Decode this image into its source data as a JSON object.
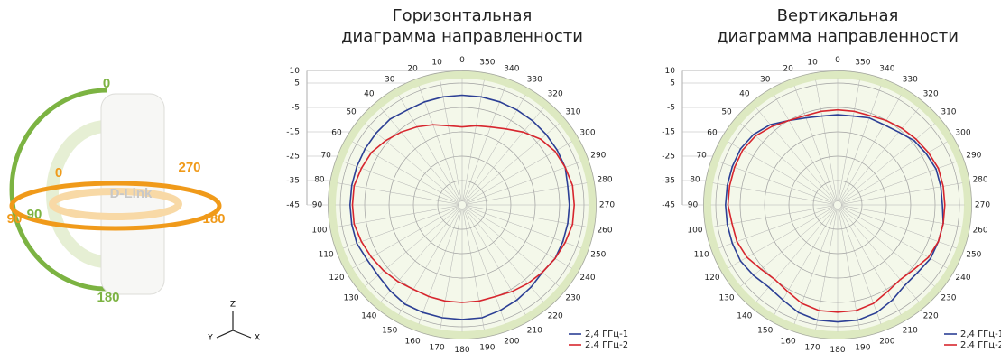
{
  "illustration": {
    "device_label": "D-Link",
    "vertical_labels": [
      "0",
      "90",
      "180"
    ],
    "horizontal_labels": [
      "0",
      "270",
      "90",
      "180"
    ],
    "axes": [
      "Z",
      "Y",
      "X"
    ]
  },
  "chart_data": [
    {
      "type": "polar",
      "title": [
        "Горизонтальная",
        "диаграмма направленности"
      ],
      "angles": [
        0,
        10,
        20,
        30,
        40,
        50,
        60,
        70,
        80,
        90,
        100,
        110,
        120,
        130,
        140,
        150,
        160,
        170,
        180,
        190,
        200,
        210,
        220,
        230,
        240,
        250,
        260,
        270,
        280,
        290,
        300,
        310,
        320,
        330,
        340,
        350
      ],
      "rlim": [
        -45,
        10
      ],
      "rticks": [
        10,
        5,
        -5,
        -15,
        -25,
        -35,
        -45
      ],
      "legend": "lower right",
      "series": [
        {
          "name": "2,4 ГГц-1",
          "color": "#2c3f95",
          "values": [
            0,
            0,
            0,
            0,
            1,
            1,
            1,
            1,
            1,
            1,
            1,
            1,
            0,
            0,
            1,
            2,
            2,
            2,
            2,
            2,
            1,
            0,
            -1,
            -2,
            -1,
            -1,
            -1,
            -1,
            -1,
            0,
            0,
            0,
            0,
            0,
            0,
            0
          ]
        },
        {
          "name": "2,4 ГГц-2",
          "color": "#d7262e",
          "values": [
            -13,
            -12,
            -10,
            -8,
            -6,
            -4,
            -2,
            -1,
            0,
            0,
            0,
            -1,
            -2,
            -3,
            -4,
            -5,
            -5,
            -5,
            -5,
            -5,
            -5,
            -4,
            -3,
            -2,
            -1,
            0,
            1,
            1,
            1,
            0,
            -1,
            -3,
            -6,
            -9,
            -11,
            -12
          ]
        }
      ]
    },
    {
      "type": "polar",
      "title": [
        "Вертикальная",
        "диаграмма направленности"
      ],
      "angles": [
        0,
        10,
        20,
        30,
        40,
        50,
        60,
        70,
        80,
        90,
        100,
        110,
        120,
        130,
        140,
        150,
        160,
        170,
        180,
        190,
        200,
        210,
        220,
        230,
        240,
        250,
        260,
        270,
        280,
        290,
        300,
        310,
        320,
        330,
        340,
        350
      ],
      "rlim": [
        -45,
        10
      ],
      "rticks": [
        10,
        5,
        -5,
        -15,
        -25,
        -35,
        -45
      ],
      "legend": "lower right",
      "series": [
        {
          "name": "2,4 ГГц-1",
          "color": "#2c3f95",
          "values": [
            -8,
            -8,
            -7,
            -5,
            -2,
            0,
            1,
            1,
            1,
            1,
            1,
            1,
            1,
            0,
            -1,
            0,
            2,
            3,
            3,
            3,
            2,
            0,
            -2,
            -2,
            -1,
            -1,
            -1,
            -2,
            -2,
            -2,
            -3,
            -4,
            -6,
            -7,
            -7,
            -8
          ]
        },
        {
          "name": "2,4 ГГц-2",
          "color": "#d7262e",
          "values": [
            -6,
            -6,
            -6,
            -5,
            -3,
            -1,
            0,
            0,
            0,
            0,
            -1,
            -1,
            -2,
            -4,
            -5,
            -4,
            -2,
            -1,
            -1,
            -1,
            -2,
            -4,
            -5,
            -4,
            -2,
            -1,
            -1,
            -1,
            -1,
            -1,
            -2,
            -3,
            -4,
            -5,
            -6,
            -6
          ]
        }
      ]
    }
  ]
}
